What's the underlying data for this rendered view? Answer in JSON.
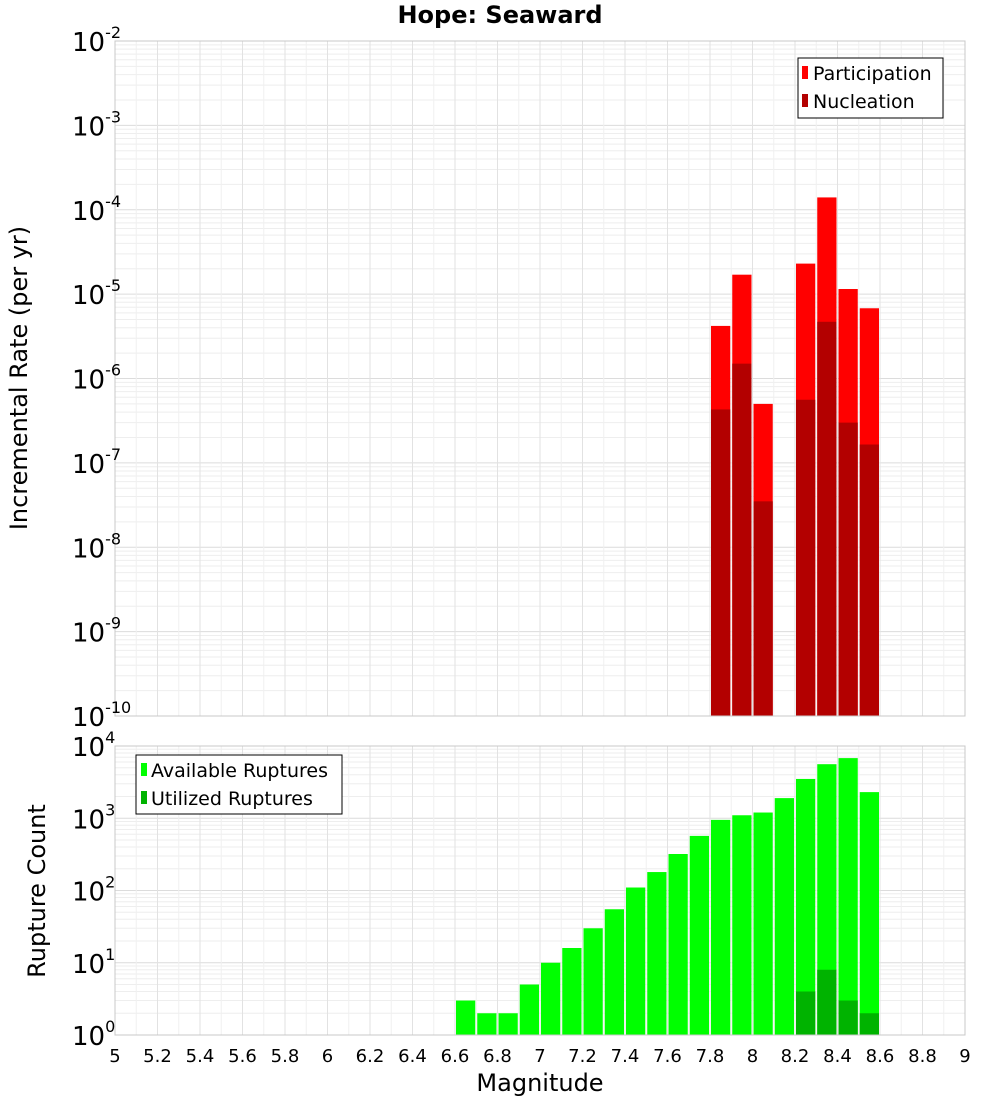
{
  "chart_data": [
    {
      "type": "bar",
      "title": "Hope: Seaward",
      "ylabel": "Incremental Rate (per yr)",
      "xlabel": "",
      "yscale": "log",
      "ylim_exp": [
        -10,
        -2
      ],
      "xlim": [
        5,
        9
      ],
      "bin_width": 0.1,
      "y_ticks": [
        "10-10",
        "10-9",
        "10-8",
        "10-7",
        "10-6",
        "10-5",
        "10-4",
        "10-3",
        "10-2"
      ],
      "legend": {
        "position": "top-right",
        "entries": [
          {
            "label": "Participation",
            "color": "#ff0000"
          },
          {
            "label": "Nucleation",
            "color": "#b30000"
          }
        ]
      },
      "series": [
        {
          "name": "Participation",
          "color": "#ff0000",
          "x": [
            7.85,
            7.95,
            8.05,
            8.25,
            8.35,
            8.45,
            8.55
          ],
          "values": [
            4.2e-06,
            1.7e-05,
            5e-07,
            2.3e-05,
            0.00014,
            1.15e-05,
            6.8e-06
          ]
        },
        {
          "name": "Nucleation",
          "color": "#b30000",
          "x": [
            7.85,
            7.95,
            8.05,
            8.25,
            8.35,
            8.45,
            8.55
          ],
          "values": [
            4.3e-07,
            1.5e-06,
            3.5e-08,
            5.6e-07,
            4.7e-06,
            3e-07,
            1.65e-07
          ]
        }
      ]
    },
    {
      "type": "bar",
      "ylabel": "Rupture Count",
      "xlabel": "Magnitude",
      "yscale": "log",
      "ylim_exp": [
        0,
        4
      ],
      "xlim": [
        5,
        9
      ],
      "bin_width": 0.1,
      "x_ticks": [
        "5",
        "5.2",
        "5.4",
        "5.6",
        "5.8",
        "6",
        "6.2",
        "6.4",
        "6.6",
        "6.8",
        "7",
        "7.2",
        "7.4",
        "7.6",
        "7.8",
        "8",
        "8.2",
        "8.4",
        "8.6",
        "8.8",
        "9"
      ],
      "y_ticks": [
        "100",
        "101",
        "102",
        "103",
        "104"
      ],
      "legend": {
        "position": "top-left",
        "entries": [
          {
            "label": "Available Ruptures",
            "color": "#00ff00"
          },
          {
            "label": "Utilized Ruptures",
            "color": "#00b300"
          }
        ]
      },
      "series": [
        {
          "name": "Available Ruptures",
          "color": "#00ff00",
          "x": [
            6.65,
            6.75,
            6.85,
            6.95,
            7.05,
            7.15,
            7.25,
            7.35,
            7.45,
            7.55,
            7.65,
            7.75,
            7.85,
            7.95,
            8.05,
            8.15,
            8.25,
            8.35,
            8.45,
            8.55
          ],
          "values": [
            3,
            2,
            2,
            5,
            10,
            16,
            30,
            55,
            110,
            180,
            320,
            570,
            950,
            1100,
            1200,
            1900,
            3500,
            5600,
            6800,
            2300
          ]
        },
        {
          "name": "Utilized Ruptures",
          "color": "#00b300",
          "x": [
            7.85,
            7.95,
            8.05,
            8.25,
            8.35,
            8.45,
            8.55
          ],
          "values": [
            1,
            1,
            1,
            4,
            8,
            3,
            2
          ]
        }
      ]
    }
  ]
}
